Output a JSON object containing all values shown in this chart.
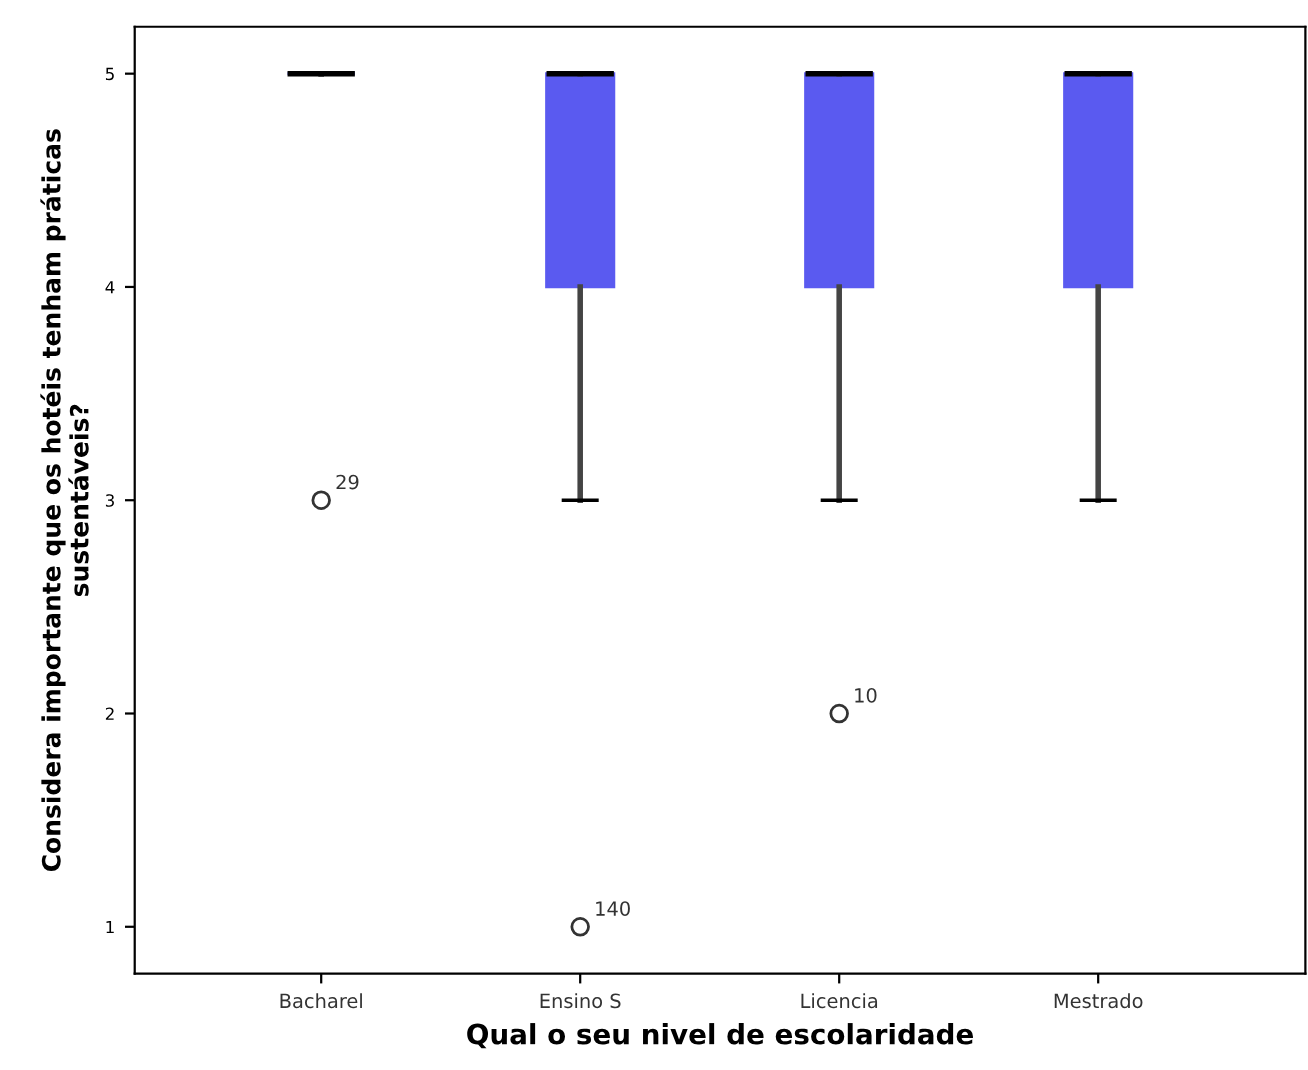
{
  "chart_data": {
    "type": "box",
    "xlabel": "Qual o seu nivel de escolaridade",
    "ylabel": "Considera importante que os hotéis tenham práticas\nsustentáveis?",
    "categories": [
      "Bacharel",
      "Ensino S",
      "Licencia",
      "Mestrado"
    ],
    "series": [
      {
        "color": "#5a5af0",
        "boxes": [
          {
            "low": 5,
            "q1": 5,
            "median": 5,
            "q3": 5,
            "high": 5,
            "outliers": [
              3
            ]
          },
          {
            "low": 3,
            "q1": 4,
            "median": 5,
            "q3": 5,
            "high": 5,
            "outliers": [
              1
            ]
          },
          {
            "low": 3,
            "q1": 4,
            "median": 5,
            "q3": 5,
            "high": 5,
            "outliers": [
              2
            ]
          },
          {
            "low": 3,
            "q1": 4,
            "median": 5,
            "q3": 5,
            "high": 5
          }
        ]
      }
    ],
    "ylim": [
      0.78,
      5.22
    ],
    "yticks": [
      1,
      2,
      3,
      4,
      5
    ],
    "grid": false,
    "annotations": [
      "29",
      "140",
      "10"
    ]
  }
}
